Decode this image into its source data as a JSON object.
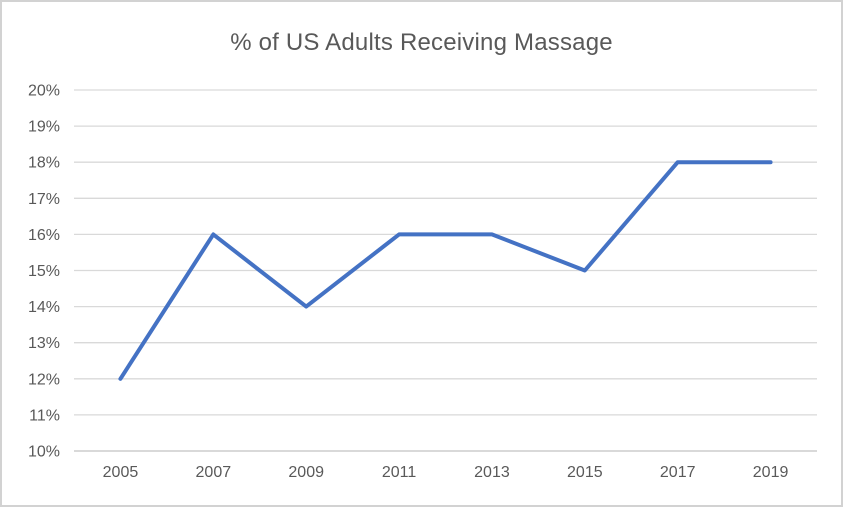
{
  "chart_data": {
    "type": "line",
    "title": "% of US Adults Receiving Massage",
    "categories": [
      "2005",
      "2007",
      "2009",
      "2011",
      "2013",
      "2015",
      "2017",
      "2019"
    ],
    "series": [
      {
        "name": "% of US Adults Receiving Massage",
        "values": [
          12,
          16,
          14,
          16,
          16,
          15,
          18,
          18
        ]
      }
    ],
    "xlabel": "",
    "ylabel": "",
    "ylim": [
      10,
      20
    ],
    "yticks": [
      {
        "value": 10,
        "label": "10%"
      },
      {
        "value": 11,
        "label": "11%"
      },
      {
        "value": 12,
        "label": "12%"
      },
      {
        "value": 13,
        "label": "13%"
      },
      {
        "value": 14,
        "label": "14%"
      },
      {
        "value": 15,
        "label": "15%"
      },
      {
        "value": 16,
        "label": "16%"
      },
      {
        "value": 17,
        "label": "17%"
      },
      {
        "value": 18,
        "label": "18%"
      },
      {
        "value": 19,
        "label": "19%"
      },
      {
        "value": 20,
        "label": "20%"
      }
    ],
    "grid": "horizontal",
    "legend_position": "none",
    "colors": {
      "line": "#4472C4",
      "grid": "#d9d9d9",
      "axis": "#d9d9d9",
      "text": "#595959",
      "background": "#ffffff",
      "frame_border": "#d2d2d2"
    },
    "line_width": 4
  }
}
